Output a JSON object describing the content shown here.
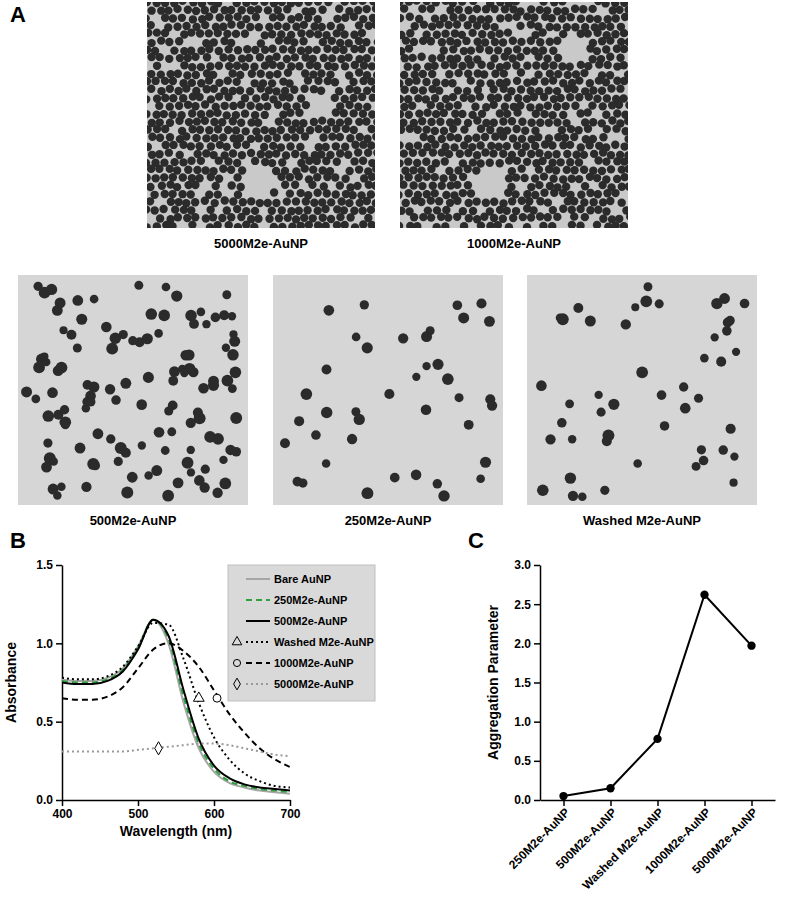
{
  "panel_a": {
    "panel": "A",
    "images": [
      {
        "label": "5000M2e-AuNP"
      },
      {
        "label": "1000M2e-AuNP"
      },
      {
        "label": "500M2e-AuNP"
      },
      {
        "label": "250M2e-AuNP"
      },
      {
        "label": "Washed M2e-AuNP"
      }
    ]
  },
  "chart_data": [
    {
      "panel": "B",
      "type": "line",
      "x": [
        400,
        420,
        440,
        460,
        480,
        500,
        520,
        540,
        560,
        580,
        600,
        620,
        640,
        660,
        680,
        700
      ],
      "xlim": [
        400,
        700
      ],
      "xticks": [
        400,
        500,
        600,
        700
      ],
      "ylim": [
        0,
        1.5
      ],
      "yticks": [
        {
          "value": 0,
          "label": "0.0"
        },
        {
          "value": 0.5,
          "label": "0.5"
        },
        {
          "value": 1,
          "label": "1.0"
        },
        {
          "value": 1.5,
          "label": "1.5"
        }
      ],
      "x_label": "Wavelength (nm)",
      "y_label": "Absorbance",
      "legend": "upper right",
      "series": [
        {
          "name": "Bare AuNP",
          "color": "#a6a6a6",
          "line_style": "solid",
          "values": [
            0.77,
            0.76,
            0.76,
            0.78,
            0.84,
            0.98,
            1.15,
            1.0,
            0.62,
            0.33,
            0.18,
            0.11,
            0.08,
            0.06,
            0.05,
            0.04
          ]
        },
        {
          "name": "250M2e-AuNP",
          "color": "#2e9e3e",
          "line_style": "dashed",
          "values": [
            0.76,
            0.75,
            0.75,
            0.77,
            0.83,
            0.97,
            1.15,
            1.03,
            0.66,
            0.36,
            0.2,
            0.12,
            0.09,
            0.07,
            0.06,
            0.05
          ]
        },
        {
          "name": "500M2e-AuNP",
          "color": "#000000",
          "line_style": "solid",
          "values": [
            0.75,
            0.74,
            0.74,
            0.76,
            0.82,
            0.96,
            1.15,
            1.05,
            0.7,
            0.39,
            0.22,
            0.14,
            0.1,
            0.08,
            0.07,
            0.06
          ]
        },
        {
          "name": "Washed M2e-AuNP",
          "color": "#000000",
          "line_style": "dotted",
          "marker": "triangle",
          "values": [
            0.78,
            0.77,
            0.77,
            0.79,
            0.85,
            0.98,
            1.13,
            1.12,
            0.9,
            0.62,
            0.4,
            0.26,
            0.17,
            0.12,
            0.09,
            0.08
          ],
          "marker_x": [
            580
          ],
          "marker_y": [
            0.65
          ]
        },
        {
          "name": "1000M2e-AuNP",
          "color": "#000000",
          "line_style": "dashed",
          "marker": "circle",
          "values": [
            0.65,
            0.64,
            0.64,
            0.66,
            0.72,
            0.84,
            0.96,
            1.0,
            0.95,
            0.85,
            0.7,
            0.55,
            0.43,
            0.33,
            0.26,
            0.21
          ],
          "marker_x": [
            604
          ],
          "marker_y": [
            0.65
          ]
        },
        {
          "name": "5000M2e-AuNP",
          "color": "#999999",
          "line_style": "dotted",
          "marker": "diamond",
          "values": [
            0.31,
            0.31,
            0.31,
            0.31,
            0.31,
            0.32,
            0.33,
            0.34,
            0.35,
            0.36,
            0.36,
            0.35,
            0.33,
            0.31,
            0.29,
            0.28
          ],
          "marker_x": [
            527
          ],
          "marker_y": [
            0.33
          ]
        }
      ]
    },
    {
      "panel": "C",
      "type": "line",
      "categories": [
        "250M2e-AuNP",
        "500M2e-AuNP",
        "Washed M2e-AuNP",
        "1000M2e-AuNP",
        "5000M2e-AuNP"
      ],
      "values": [
        0.05,
        0.15,
        0.78,
        2.62,
        1.97
      ],
      "color": "#000000",
      "marker": "circle",
      "ylim": [
        0,
        3
      ],
      "yticks": [
        {
          "value": 0,
          "label": "0.0"
        },
        {
          "value": 0.5,
          "label": "0.5"
        },
        {
          "value": 1,
          "label": "1.0"
        },
        {
          "value": 1.5,
          "label": "1.5"
        },
        {
          "value": 2,
          "label": "2.0"
        },
        {
          "value": 2.5,
          "label": "2.5"
        },
        {
          "value": 3,
          "label": "3.0"
        }
      ],
      "y_label": "Aggregation Parameter"
    }
  ]
}
